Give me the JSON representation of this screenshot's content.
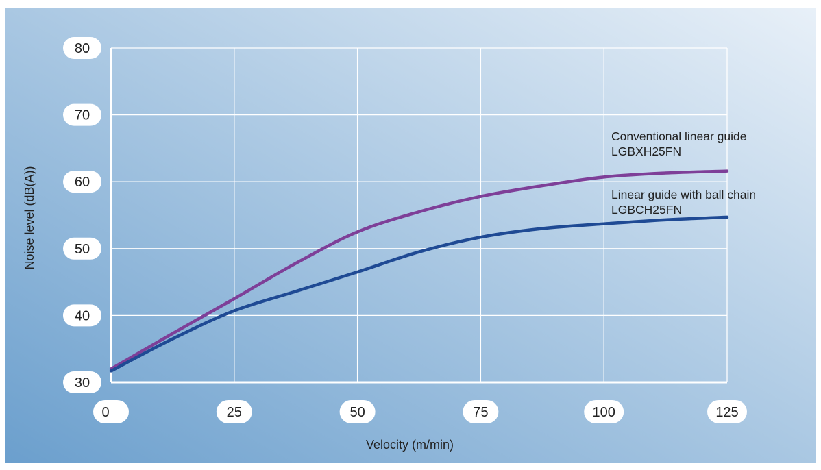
{
  "chart_data": {
    "type": "line",
    "xlabel": "Velocity (m/min)",
    "ylabel": "Noise level (dB(A))",
    "xlim": [
      0,
      125
    ],
    "ylim": [
      30,
      80
    ],
    "x_ticks": [
      "0",
      "25",
      "50",
      "75",
      "100",
      "125"
    ],
    "y_ticks": [
      "30",
      "40",
      "50",
      "60",
      "70",
      "80"
    ],
    "grid": true,
    "legend": "inline-right",
    "series": [
      {
        "name": "Conventional linear guide LGBXH25FN",
        "label_lines": [
          "Conventional linear guide",
          "LGBXH25FN"
        ],
        "color": "#7e3f98",
        "x": [
          0,
          12.5,
          25,
          37.5,
          50,
          62.5,
          75,
          87.5,
          100,
          112.5,
          125
        ],
        "y": [
          32.0,
          37.3,
          42.5,
          47.8,
          52.5,
          55.5,
          57.8,
          59.4,
          60.7,
          61.3,
          61.6
        ]
      },
      {
        "name": "Linear guide with ball chain LGBCH25FN",
        "label_lines": [
          "Linear guide with ball chain",
          "LGBCH25FN"
        ],
        "color": "#1f4a94",
        "x": [
          0,
          12.5,
          25,
          37.5,
          50,
          62.5,
          75,
          87.5,
          100,
          112.5,
          125
        ],
        "y": [
          31.7,
          36.5,
          40.7,
          43.6,
          46.5,
          49.5,
          51.7,
          53.0,
          53.7,
          54.3,
          54.7
        ]
      }
    ]
  },
  "colors": {
    "background_from": "#6b9fcd",
    "background_to": "#e8f0f8",
    "grid": "#ffffff",
    "frame": "#ffffff",
    "tick_pill": "#ffffff"
  }
}
